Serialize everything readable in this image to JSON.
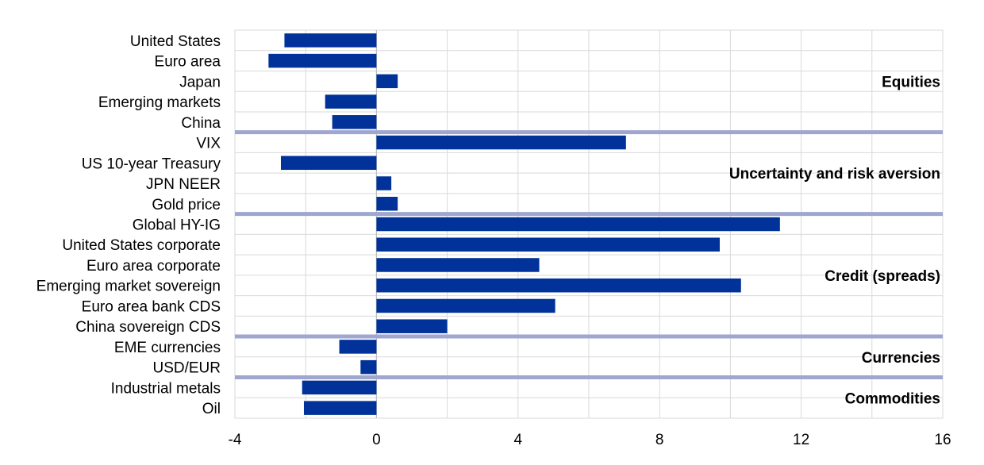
{
  "chart_data": {
    "type": "bar",
    "orientation": "horizontal",
    "categories": [
      "United States",
      "Euro area",
      "Japan",
      "Emerging markets",
      "China",
      "VIX",
      "US 10-year Treasury",
      "JPN NEER",
      "Gold price",
      "Global HY-IG",
      "United States corporate",
      "Euro area corporate",
      "Emerging market sovereign",
      "Euro area bank CDS",
      "China sovereign CDS",
      "EME currencies",
      "USD/EUR",
      "Industrial metals",
      "Oil"
    ],
    "values": [
      -2.6,
      -3.05,
      0.6,
      -1.45,
      -1.25,
      7.05,
      -2.7,
      0.42,
      0.6,
      11.4,
      9.7,
      4.6,
      10.3,
      5.05,
      2.0,
      -1.05,
      -0.45,
      -2.1,
      -2.05
    ],
    "groups": [
      {
        "label": "Equities",
        "start": 0,
        "end": 4
      },
      {
        "label": "Uncertainty and risk aversion",
        "start": 5,
        "end": 8
      },
      {
        "label": "Credit (spreads)",
        "start": 9,
        "end": 14
      },
      {
        "label": "Currencies",
        "start": 15,
        "end": 16
      },
      {
        "label": "Commodities",
        "start": 17,
        "end": 18
      }
    ],
    "xlim": [
      -4,
      16
    ],
    "xticks": [
      "-4",
      "0",
      "4",
      "8",
      "12",
      "16"
    ],
    "grid": true,
    "bar_color": "#003299",
    "separator_color": "#9fa6d0",
    "grid_color": "#d9d9d9"
  }
}
